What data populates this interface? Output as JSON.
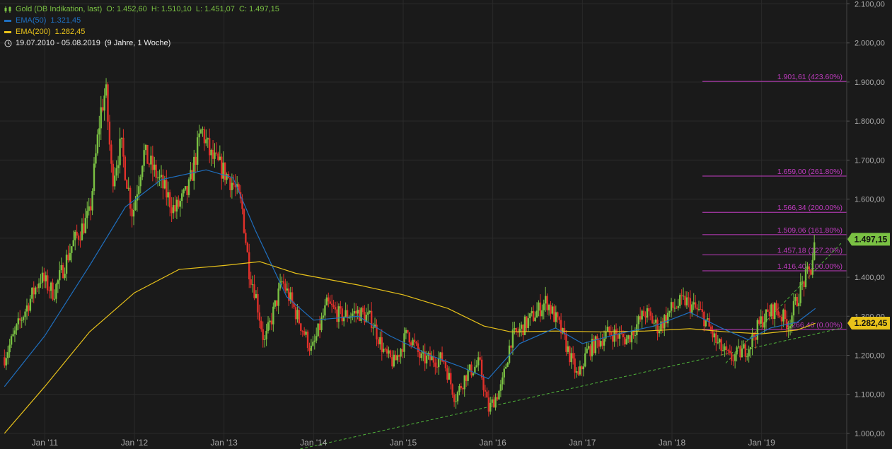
{
  "legend": {
    "instrument": "Gold (DB Indikation, last)",
    "ohlc": "O: 1.452,60  H: 1.510,10  L: 1.451,07  C: 1.497,15",
    "ema50_label": "EMA(50)",
    "ema50_value": "1.321,45",
    "ema200_label": "EMA(200)",
    "ema200_value": "1.282,45",
    "range": "19.07.2010 - 05.08.2019",
    "range_duration": "(9 Jahre, 1 Woche)"
  },
  "colors": {
    "background": "#1a1a1a",
    "up": "#7ac143",
    "down": "#e0302a",
    "ema50": "#1f6fbf",
    "ema200": "#e8c21a",
    "fib": "#c23cc2",
    "trend": "#4fb33a",
    "grid": "#2a2a2a",
    "axis_text": "#aaaaaa"
  },
  "chart_data": {
    "type": "candlestick",
    "xlabel": "",
    "ylabel": "",
    "ylim": [
      960,
      2110
    ],
    "x_ticks": [
      "Jan '11",
      "Jan '12",
      "Jan '13",
      "Jan '14",
      "Jan '15",
      "Jan '16",
      "Jan '17",
      "Jan '18",
      "Jan '19"
    ],
    "y_ticks": [
      "1.000,00",
      "1.100,00",
      "1.200,00",
      "1.300,00",
      "1.400,00",
      "1.500,00",
      "1.600,00",
      "1.700,00",
      "1.800,00",
      "1.900,00",
      "2.000,00",
      "2.100,00"
    ],
    "y_tick_values": [
      1000,
      1100,
      1200,
      1300,
      1400,
      1500,
      1600,
      1700,
      1800,
      1900,
      2000,
      2100
    ],
    "price_path": [
      [
        2010.55,
        1195
      ],
      [
        2010.75,
        1300
      ],
      [
        2010.95,
        1400
      ],
      [
        2011.1,
        1360
      ],
      [
        2011.3,
        1480
      ],
      [
        2011.5,
        1560
      ],
      [
        2011.62,
        1820
      ],
      [
        2011.68,
        1880
      ],
      [
        2011.75,
        1650
      ],
      [
        2011.85,
        1740
      ],
      [
        2011.98,
        1560
      ],
      [
        2012.1,
        1720
      ],
      [
        2012.3,
        1640
      ],
      [
        2012.45,
        1570
      ],
      [
        2012.6,
        1620
      ],
      [
        2012.75,
        1780
      ],
      [
        2012.85,
        1710
      ],
      [
        2013.0,
        1670
      ],
      [
        2013.1,
        1640
      ],
      [
        2013.2,
        1580
      ],
      [
        2013.28,
        1420
      ],
      [
        2013.35,
        1360
      ],
      [
        2013.45,
        1230
      ],
      [
        2013.55,
        1310
      ],
      [
        2013.65,
        1390
      ],
      [
        2013.8,
        1310
      ],
      [
        2013.98,
        1210
      ],
      [
        2014.15,
        1330
      ],
      [
        2014.3,
        1300
      ],
      [
        2014.5,
        1310
      ],
      [
        2014.65,
        1290
      ],
      [
        2014.8,
        1200
      ],
      [
        2014.9,
        1180
      ],
      [
        2015.05,
        1260
      ],
      [
        2015.2,
        1190
      ],
      [
        2015.45,
        1190
      ],
      [
        2015.58,
        1090
      ],
      [
        2015.7,
        1150
      ],
      [
        2015.85,
        1180
      ],
      [
        2015.95,
        1060
      ],
      [
        2016.1,
        1120
      ],
      [
        2016.2,
        1240
      ],
      [
        2016.45,
        1300
      ],
      [
        2016.6,
        1340
      ],
      [
        2016.75,
        1270
      ],
      [
        2016.95,
        1140
      ],
      [
        2017.05,
        1210
      ],
      [
        2017.3,
        1260
      ],
      [
        2017.5,
        1240
      ],
      [
        2017.7,
        1310
      ],
      [
        2017.85,
        1270
      ],
      [
        2018.0,
        1320
      ],
      [
        2018.15,
        1340
      ],
      [
        2018.35,
        1300
      ],
      [
        2018.5,
        1230
      ],
      [
        2018.65,
        1190
      ],
      [
        2018.85,
        1220
      ],
      [
        2019.0,
        1290
      ],
      [
        2019.15,
        1320
      ],
      [
        2019.3,
        1280
      ],
      [
        2019.45,
        1380
      ],
      [
        2019.55,
        1420
      ],
      [
        2019.6,
        1497
      ]
    ],
    "ema50_path": [
      [
        2010.55,
        1120
      ],
      [
        2011.0,
        1250
      ],
      [
        2011.5,
        1430
      ],
      [
        2011.9,
        1580
      ],
      [
        2012.3,
        1650
      ],
      [
        2012.8,
        1675
      ],
      [
        2013.1,
        1655
      ],
      [
        2013.35,
        1520
      ],
      [
        2013.7,
        1350
      ],
      [
        2014.0,
        1290
      ],
      [
        2014.5,
        1300
      ],
      [
        2014.85,
        1250
      ],
      [
        2015.3,
        1200
      ],
      [
        2015.65,
        1170
      ],
      [
        2015.95,
        1140
      ],
      [
        2016.3,
        1230
      ],
      [
        2016.7,
        1270
      ],
      [
        2017.0,
        1230
      ],
      [
        2017.4,
        1255
      ],
      [
        2017.8,
        1275
      ],
      [
        2018.2,
        1310
      ],
      [
        2018.55,
        1270
      ],
      [
        2018.85,
        1240
      ],
      [
        2019.1,
        1270
      ],
      [
        2019.4,
        1285
      ],
      [
        2019.6,
        1320
      ]
    ],
    "ema200_path": [
      [
        2010.55,
        1000
      ],
      [
        2011.0,
        1120
      ],
      [
        2011.5,
        1260
      ],
      [
        2012.0,
        1360
      ],
      [
        2012.5,
        1420
      ],
      [
        2013.0,
        1430
      ],
      [
        2013.4,
        1440
      ],
      [
        2013.8,
        1410
      ],
      [
        2014.5,
        1380
      ],
      [
        2015.0,
        1355
      ],
      [
        2015.5,
        1320
      ],
      [
        2015.9,
        1275
      ],
      [
        2016.2,
        1260
      ],
      [
        2016.7,
        1262
      ],
      [
        2017.2,
        1260
      ],
      [
        2017.7,
        1262
      ],
      [
        2018.2,
        1268
      ],
      [
        2018.6,
        1260
      ],
      [
        2019.0,
        1255
      ],
      [
        2019.4,
        1265
      ],
      [
        2019.6,
        1282
      ]
    ],
    "fibonacci": [
      {
        "value": 1901.61,
        "label": "1.901,61 (423.60%)"
      },
      {
        "value": 1659.0,
        "label": "1.659,00 (261.80%)"
      },
      {
        "value": 1566.34,
        "label": "1.566,34 (200.00%)"
      },
      {
        "value": 1509.06,
        "label": "1.509,06 (161.80%)"
      },
      {
        "value": 1457.18,
        "label": "1.457,18 (127.20%)"
      },
      {
        "value": 1416.4,
        "label": "1.416,40 (100.00%)"
      },
      {
        "value": 1266.46,
        "label": "1.266,46 (0.00%)"
      }
    ],
    "trendlines": [
      {
        "from": [
          2013.85,
          960
        ],
        "to": [
          2019.9,
          1270
        ]
      },
      {
        "from": [
          2018.6,
          1180
        ],
        "to": [
          2019.9,
          1490
        ]
      }
    ],
    "price_tags": [
      {
        "value": 1497.15,
        "label": "1.497,15",
        "color": "#7ac143"
      },
      {
        "value": 1282.45,
        "label": "1.282,45",
        "color": "#e8c21a"
      }
    ]
  }
}
